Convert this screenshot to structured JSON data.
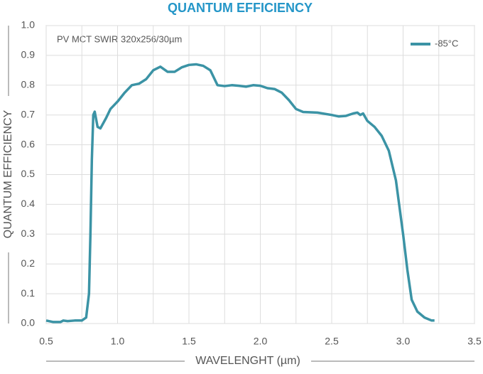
{
  "chart_data": {
    "type": "line",
    "title": "QUANTUM EFFICIENCY",
    "annotation": "PV MCT SWIR 320x256/30µm",
    "x_label": "WAVELENGHT (µm)",
    "y_label": "QUANTUM EFFICIENCY",
    "x": [
      0.5,
      0.55,
      0.6,
      0.62,
      0.65,
      0.7,
      0.75,
      0.78,
      0.8,
      0.81,
      0.82,
      0.83,
      0.84,
      0.86,
      0.88,
      0.92,
      0.95,
      1.0,
      1.05,
      1.1,
      1.15,
      1.2,
      1.25,
      1.3,
      1.35,
      1.4,
      1.45,
      1.5,
      1.55,
      1.6,
      1.65,
      1.7,
      1.75,
      1.8,
      1.85,
      1.9,
      1.95,
      2.0,
      2.05,
      2.1,
      2.15,
      2.2,
      2.25,
      2.3,
      2.4,
      2.5,
      2.55,
      2.6,
      2.65,
      2.68,
      2.7,
      2.72,
      2.75,
      2.8,
      2.85,
      2.9,
      2.95,
      3.0,
      3.03,
      3.06,
      3.1,
      3.15,
      3.2,
      3.22
    ],
    "series": [
      {
        "name": "-85°C",
        "color": "#3b93a5",
        "values": [
          0.01,
          0.005,
          0.005,
          0.01,
          0.008,
          0.01,
          0.01,
          0.02,
          0.1,
          0.3,
          0.55,
          0.7,
          0.711,
          0.66,
          0.655,
          0.69,
          0.72,
          0.745,
          0.775,
          0.8,
          0.805,
          0.82,
          0.85,
          0.862,
          0.845,
          0.845,
          0.86,
          0.868,
          0.87,
          0.865,
          0.85,
          0.8,
          0.797,
          0.8,
          0.798,
          0.795,
          0.8,
          0.798,
          0.79,
          0.787,
          0.775,
          0.75,
          0.72,
          0.71,
          0.708,
          0.7,
          0.695,
          0.697,
          0.705,
          0.708,
          0.7,
          0.705,
          0.68,
          0.66,
          0.63,
          0.58,
          0.48,
          0.3,
          0.18,
          0.08,
          0.04,
          0.02,
          0.01,
          0.01
        ]
      }
    ],
    "xlim": [
      0.5,
      3.5
    ],
    "ylim": [
      0,
      1.0
    ],
    "xticks": [
      0.5,
      {
        "value": 1.0,
        "label": "1.0"
      },
      1.5,
      {
        "value": 2.0,
        "label": "2.0"
      },
      2.5,
      {
        "value": 3.0,
        "label": "3.0"
      },
      3.5
    ],
    "x_minor_ticks": [
      0.75,
      1.25,
      1.75,
      2.25,
      2.75,
      3.25
    ],
    "yticks": [
      {
        "value": 0,
        "label": "0.0"
      },
      0.1,
      0.2,
      0.3,
      0.4,
      0.5,
      0.6,
      0.7,
      0.8,
      0.9,
      {
        "value": 1.0,
        "label": "1.0"
      }
    ],
    "grid": true,
    "legend": "upper right"
  }
}
